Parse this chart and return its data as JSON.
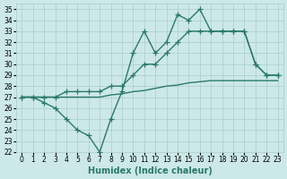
{
  "xlabel": "Humidex (Indice chaleur)",
  "x": [
    0,
    1,
    2,
    3,
    4,
    5,
    6,
    7,
    8,
    9,
    10,
    11,
    12,
    13,
    14,
    15,
    16,
    17,
    18,
    19,
    20,
    21,
    22,
    23
  ],
  "line1": [
    27,
    27,
    26.5,
    26,
    25,
    24,
    23.5,
    22,
    25,
    27.5,
    31,
    33,
    31,
    32,
    34.5,
    34,
    35,
    33,
    33,
    33,
    33,
    30,
    29,
    29
  ],
  "line2": [
    27,
    27,
    27,
    27,
    27.5,
    27.5,
    27.5,
    27.5,
    28,
    28,
    29,
    30,
    30,
    31,
    32,
    33,
    33,
    33,
    33,
    33,
    33,
    30,
    29,
    29
  ],
  "line3": [
    27,
    27,
    27,
    27,
    27,
    27,
    27,
    27,
    27.2,
    27.3,
    27.5,
    27.6,
    27.8,
    28.0,
    28.1,
    28.3,
    28.4,
    28.5,
    28.5,
    28.5,
    28.5,
    28.5,
    28.5,
    28.5
  ],
  "line_color": "#2a7a68",
  "bg_color": "#cce8e8",
  "grid_color": "#aacccc",
  "ylim": [
    22,
    35.5
  ],
  "yticks": [
    22,
    23,
    24,
    25,
    26,
    27,
    28,
    29,
    30,
    31,
    32,
    33,
    34,
    35
  ],
  "xlim": [
    -0.5,
    23.5
  ],
  "xticks": [
    0,
    1,
    2,
    3,
    4,
    5,
    6,
    7,
    8,
    9,
    10,
    11,
    12,
    13,
    14,
    15,
    16,
    17,
    18,
    19,
    20,
    21,
    22,
    23
  ],
  "marker": "+",
  "markersize": 4,
  "linewidth": 1.0,
  "xlabel_fontsize": 7,
  "tick_fontsize": 5.5
}
